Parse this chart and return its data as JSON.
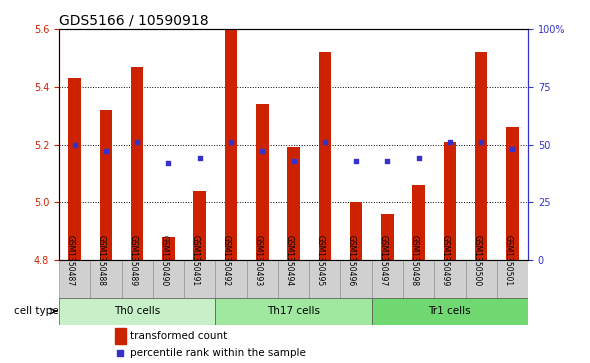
{
  "title": "GDS5166 / 10590918",
  "samples": [
    "GSM1350487",
    "GSM1350488",
    "GSM1350489",
    "GSM1350490",
    "GSM1350491",
    "GSM1350492",
    "GSM1350493",
    "GSM1350494",
    "GSM1350495",
    "GSM1350496",
    "GSM1350497",
    "GSM1350498",
    "GSM1350499",
    "GSM1350500",
    "GSM1350501"
  ],
  "bar_values": [
    5.43,
    5.32,
    5.47,
    4.88,
    5.04,
    5.6,
    5.34,
    5.19,
    5.52,
    5.0,
    4.96,
    5.06,
    5.21,
    5.52,
    5.26
  ],
  "percentile_values": [
    50,
    47,
    51,
    42,
    44,
    51,
    47,
    43,
    51,
    43,
    43,
    44,
    51,
    51,
    48
  ],
  "bar_bottom": 4.8,
  "ylim_left": [
    4.8,
    5.6
  ],
  "ylim_right": [
    0,
    100
  ],
  "yticks_left": [
    4.8,
    5.0,
    5.2,
    5.4,
    5.6
  ],
  "yticks_right": [
    0,
    25,
    50,
    75,
    100
  ],
  "grid_yticks": [
    5.0,
    5.2,
    5.4
  ],
  "bar_color": "#cc2200",
  "dot_color": "#3333cc",
  "cell_groups": [
    {
      "label": "Th0 cells",
      "start": 0,
      "end": 4,
      "color": "#c8f0c8"
    },
    {
      "label": "Th17 cells",
      "start": 5,
      "end": 9,
      "color": "#a0e8a0"
    },
    {
      "label": "Tr1 cells",
      "start": 10,
      "end": 14,
      "color": "#70d870"
    }
  ],
  "legend_bar_label": "transformed count",
  "legend_dot_label": "percentile rank within the sample",
  "cell_type_label": "cell type",
  "title_fontsize": 10,
  "ytick_fontsize": 7,
  "xtick_fontsize": 5.5,
  "legend_fontsize": 7.5,
  "cell_label_fontsize": 7.5,
  "axis_label_color_left": "#cc2200",
  "axis_label_color_right": "#3333cc",
  "xtick_bg_color": "#d0d0d0",
  "bar_width": 0.4
}
